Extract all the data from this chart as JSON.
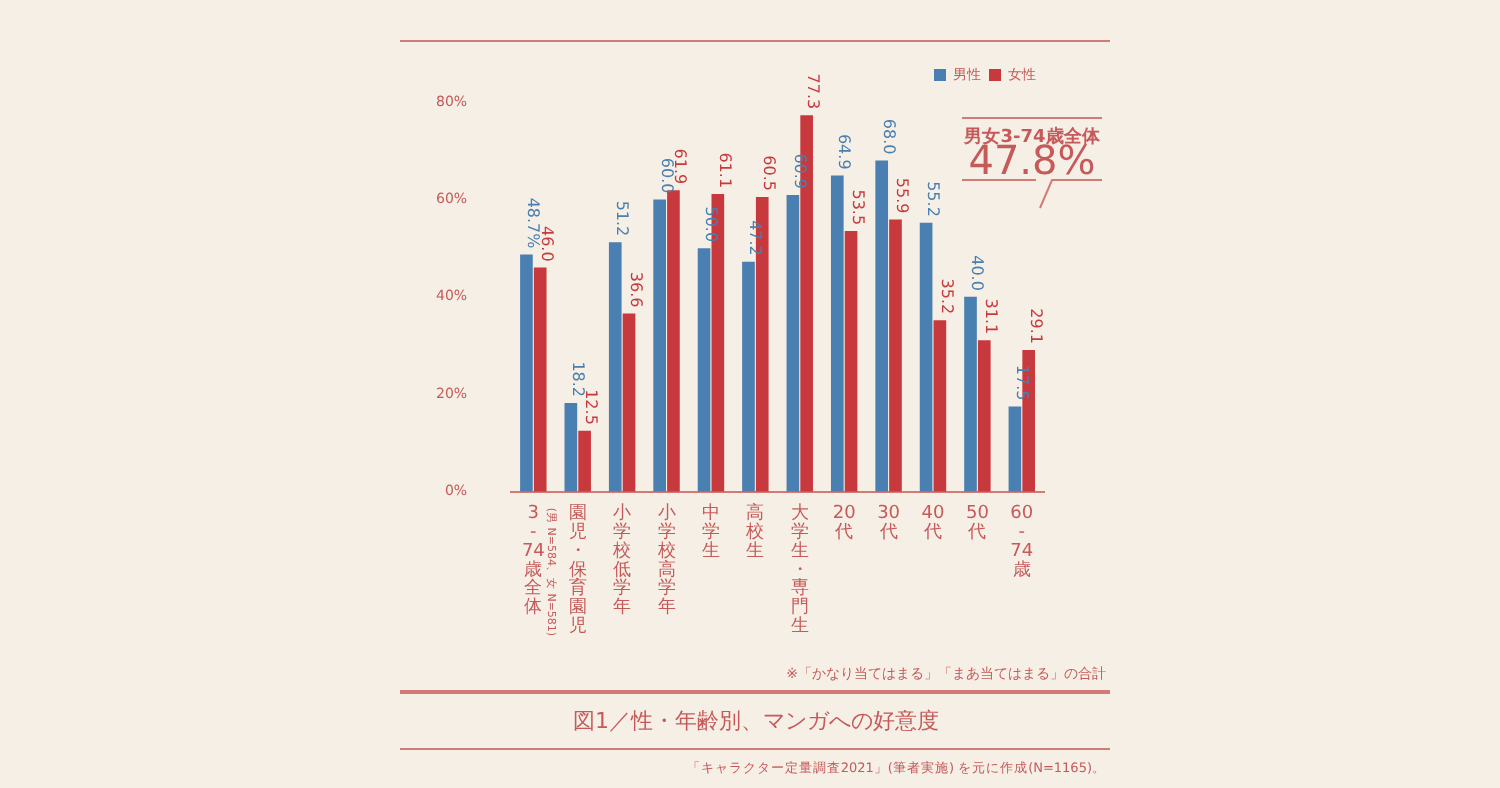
{
  "chart_data": {
    "type": "bar",
    "title": "図1／性・年齢別、マンガへの好意度",
    "categories": [
      "3-74歳全体",
      "園児・保育園児",
      "小学校低学年",
      "小学校高学年",
      "中学生",
      "高校生",
      "大学生・専門生",
      "20代",
      "30代",
      "40代",
      "50代",
      "60-74歳"
    ],
    "series": [
      {
        "name": "男性",
        "color": "#4a7fb1",
        "values": [
          48.7,
          18.2,
          51.2,
          60.0,
          50.0,
          47.2,
          60.9,
          64.9,
          68.0,
          55.2,
          40.0,
          17.5
        ],
        "value_labels": [
          "48.7%",
          "18.2",
          "51.2",
          "60.0",
          "50.0",
          "47.2",
          "60.9",
          "64.9",
          "68.0",
          "55.2",
          "40.0",
          "17.5"
        ]
      },
      {
        "name": "女性",
        "color": "#c8393e",
        "values": [
          46.0,
          12.5,
          36.6,
          61.9,
          61.1,
          60.5,
          77.3,
          53.5,
          55.9,
          35.2,
          31.1,
          29.1
        ],
        "value_labels": [
          "46.0",
          "12.5",
          "36.6",
          "61.9",
          "61.1",
          "60.5",
          "77.3",
          "53.5",
          "55.9",
          "35.2",
          "31.1",
          "29.1"
        ]
      }
    ],
    "ylim": [
      0,
      80
    ],
    "yticks": [
      {
        "value": 0,
        "label": "0%"
      },
      {
        "value": 20,
        "label": "20%"
      },
      {
        "value": 40,
        "label": "40%"
      },
      {
        "value": 60,
        "label": "60%"
      },
      {
        "value": 80,
        "label": "80%"
      }
    ],
    "grid": false,
    "legend": "top right",
    "annotations": [
      "(男 N=584、女 N=581)",
      "男女3-74歳全体",
      "47.8%",
      "※「かなり当てはまる」「まあ当てはまる」の合計",
      "「キャラクター定量調査2021」(筆者実施) を元に作成(N=1165)。"
    ]
  }
}
